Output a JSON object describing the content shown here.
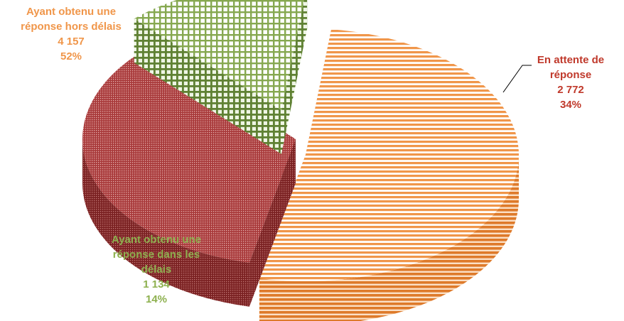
{
  "chart_data": {
    "type": "pie",
    "title": "",
    "slices": [
      {
        "label_lines": [
          "Ayant obtenu une",
          "réponse hors délais"
        ],
        "value": "4 157",
        "percent": "52%",
        "numeric_value": 4157,
        "percent_value": 52,
        "color": "#f0964a",
        "pattern": "horizontal-stripes"
      },
      {
        "label_lines": [
          "En attente de",
          "réponse"
        ],
        "value": "2 772",
        "percent": "34%",
        "numeric_value": 2772,
        "percent_value": 34,
        "color": "#a8393a",
        "pattern": "dots"
      },
      {
        "label_lines": [
          "Ayant obtenu une",
          "réponse dans les",
          "délais"
        ],
        "value": "1 134",
        "percent": "14%",
        "numeric_value": 1134,
        "percent_value": 14,
        "color": "#86a850",
        "pattern": "grid"
      }
    ],
    "label_colors": {
      "orange": "#f0964a",
      "red": "#c0392b",
      "green": "#8db04e"
    }
  }
}
